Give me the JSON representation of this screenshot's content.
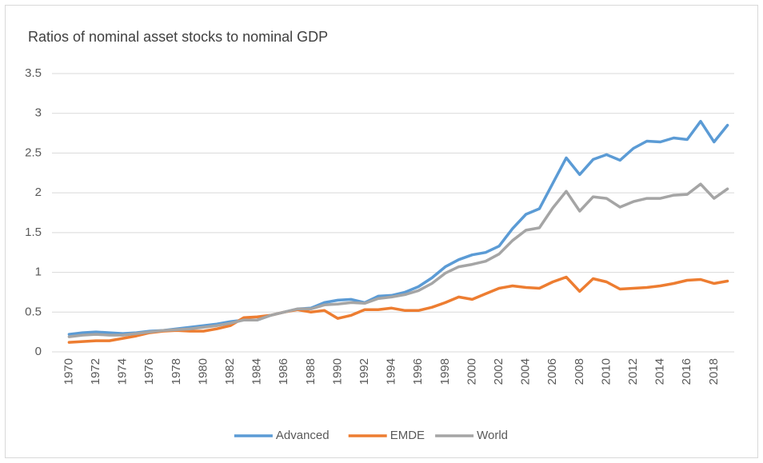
{
  "chart_data": {
    "type": "line",
    "title": "Ratios of nominal asset stocks to nominal GDP",
    "categories": [
      "1970",
      null,
      "1972",
      null,
      "1974",
      null,
      "1976",
      null,
      "1978",
      null,
      "1980",
      null,
      "1982",
      null,
      "1984",
      null,
      "1986",
      null,
      "1988",
      null,
      "1990",
      null,
      "1992",
      null,
      "1994",
      null,
      "1996",
      null,
      "1998",
      null,
      "2000",
      null,
      "2002",
      null,
      "2004",
      null,
      "2006",
      null,
      "2008",
      null,
      "2010",
      null,
      "2012",
      null,
      "2014",
      null,
      "2016",
      null,
      "2018",
      null
    ],
    "series": [
      {
        "name": "Advanced",
        "color": "#5b9bd5",
        "values": [
          0.22,
          0.24,
          0.25,
          0.24,
          0.23,
          0.24,
          0.26,
          0.27,
          0.29,
          0.31,
          0.33,
          0.35,
          0.38,
          0.4,
          0.4,
          0.46,
          0.5,
          0.54,
          0.55,
          0.62,
          0.65,
          0.66,
          0.62,
          0.7,
          0.71,
          0.75,
          0.82,
          0.93,
          1.07,
          1.16,
          1.22,
          1.25,
          1.33,
          1.55,
          1.73,
          1.8,
          2.12,
          2.44,
          2.23,
          2.42,
          2.48,
          2.41,
          2.56,
          2.65,
          2.64,
          2.69,
          2.67,
          2.9,
          2.64,
          2.85
        ]
      },
      {
        "name": "EMDE",
        "color": "#ed7d31",
        "values": [
          0.12,
          0.13,
          0.14,
          0.14,
          0.17,
          0.2,
          0.24,
          0.26,
          0.27,
          0.26,
          0.26,
          0.29,
          0.33,
          0.43,
          0.44,
          0.46,
          0.5,
          0.53,
          0.5,
          0.52,
          0.42,
          0.46,
          0.53,
          0.53,
          0.55,
          0.52,
          0.52,
          0.56,
          0.62,
          0.69,
          0.66,
          0.73,
          0.8,
          0.83,
          0.81,
          0.8,
          0.88,
          0.94,
          0.76,
          0.92,
          0.88,
          0.79,
          0.8,
          0.81,
          0.83,
          0.86,
          0.9,
          0.91,
          0.86,
          0.89
        ]
      },
      {
        "name": "World",
        "color": "#a5a5a5",
        "values": [
          0.19,
          0.21,
          0.22,
          0.21,
          0.21,
          0.23,
          0.25,
          0.27,
          0.28,
          0.29,
          0.31,
          0.33,
          0.36,
          0.4,
          0.4,
          0.46,
          0.5,
          0.54,
          0.54,
          0.59,
          0.6,
          0.62,
          0.61,
          0.67,
          0.69,
          0.72,
          0.77,
          0.86,
          0.99,
          1.07,
          1.1,
          1.14,
          1.23,
          1.4,
          1.53,
          1.56,
          1.81,
          2.02,
          1.77,
          1.95,
          1.93,
          1.82,
          1.89,
          1.93,
          1.93,
          1.97,
          1.98,
          2.11,
          1.93,
          2.05
        ]
      }
    ],
    "ylim": [
      0,
      3.5
    ],
    "yticks": [
      0,
      0.5,
      1,
      1.5,
      2,
      2.5,
      3,
      3.5
    ],
    "grid": true,
    "legend": "bottom"
  }
}
